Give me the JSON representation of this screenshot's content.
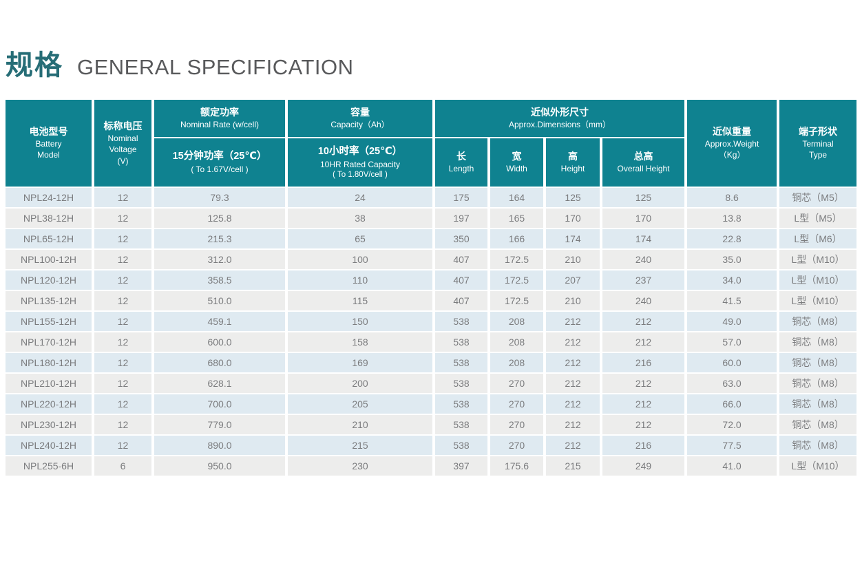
{
  "title": {
    "zh": "规格",
    "en": "GENERAL SPECIFICATION"
  },
  "colors": {
    "header_teal": "#0f8290",
    "title_teal": "#266d76",
    "title_gray": "#58595b",
    "row_stripe_blue": "#dfeaf1",
    "row_stripe_gray": "#ededec",
    "cell_text_gray": "#7b7c7e"
  },
  "table": {
    "header": {
      "battery_model": {
        "zh": "电池型号",
        "en1": "Battery",
        "en2": "Model"
      },
      "nominal_voltage": {
        "zh": "标称电压",
        "en1": "Nominal",
        "en2": "Voltage",
        "en3": "(V)"
      },
      "nominal_rate_top": {
        "zh": "额定功率",
        "en": "Nominal Rate (w/cell)"
      },
      "nominal_rate_sub": {
        "zh": "15分钟功率（25℃）",
        "en": "( To 1.67V/cell )"
      },
      "capacity_top": {
        "zh": "容量",
        "en": "Capacity（Ah）"
      },
      "capacity_sub": {
        "zh": "10小时率（25℃）",
        "en": "10HR Rated Capacity",
        "note": "( To 1.80V/cell )"
      },
      "dimensions_top": {
        "zh": "近似外形尺寸",
        "en": "Approx.Dimensions（mm）"
      },
      "dim_length": {
        "zh": "长",
        "en": "Length"
      },
      "dim_width": {
        "zh": "宽",
        "en": "Width"
      },
      "dim_height": {
        "zh": "高",
        "en": "Height"
      },
      "dim_overall_height": {
        "zh": "总高",
        "en": "Overall Height"
      },
      "approx_weight": {
        "zh": "近似重量",
        "en": "Approx.Weight",
        "unit": "（Kg）"
      },
      "terminal_type": {
        "zh": "端子形状",
        "en1": "Terminal",
        "en2": "Type"
      }
    },
    "rows": [
      [
        "NPL24-12H",
        "12",
        "79.3",
        "24",
        "175",
        "164",
        "125",
        "125",
        "8.6",
        "铜芯（M5）"
      ],
      [
        "NPL38-12H",
        "12",
        "125.8",
        "38",
        "197",
        "165",
        "170",
        "170",
        "13.8",
        "L型（M5）"
      ],
      [
        "NPL65-12H",
        "12",
        "215.3",
        "65",
        "350",
        "166",
        "174",
        "174",
        "22.8",
        "L型（M6）"
      ],
      [
        "NPL100-12H",
        "12",
        "312.0",
        "100",
        "407",
        "172.5",
        "210",
        "240",
        "35.0",
        "L型（M10）"
      ],
      [
        "NPL120-12H",
        "12",
        "358.5",
        "110",
        "407",
        "172.5",
        "207",
        "237",
        "34.0",
        "L型（M10）"
      ],
      [
        "NPL135-12H",
        "12",
        "510.0",
        "115",
        "407",
        "172.5",
        "210",
        "240",
        "41.5",
        "L型（M10）"
      ],
      [
        "NPL155-12H",
        "12",
        "459.1",
        "150",
        "538",
        "208",
        "212",
        "212",
        "49.0",
        "铜芯（M8）"
      ],
      [
        "NPL170-12H",
        "12",
        "600.0",
        "158",
        "538",
        "208",
        "212",
        "212",
        "57.0",
        "铜芯（M8）"
      ],
      [
        "NPL180-12H",
        "12",
        "680.0",
        "169",
        "538",
        "208",
        "212",
        "216",
        "60.0",
        "铜芯（M8）"
      ],
      [
        "NPL210-12H",
        "12",
        "628.1",
        "200",
        "538",
        "270",
        "212",
        "212",
        "63.0",
        "铜芯（M8）"
      ],
      [
        "NPL220-12H",
        "12",
        "700.0",
        "205",
        "538",
        "270",
        "212",
        "212",
        "66.0",
        "铜芯（M8）"
      ],
      [
        "NPL230-12H",
        "12",
        "779.0",
        "210",
        "538",
        "270",
        "212",
        "212",
        "72.0",
        "铜芯（M8）"
      ],
      [
        "NPL240-12H",
        "12",
        "890.0",
        "215",
        "538",
        "270",
        "212",
        "216",
        "77.5",
        "铜芯（M8）"
      ],
      [
        "NPL255-6H",
        "6",
        "950.0",
        "230",
        "397",
        "175.6",
        "215",
        "249",
        "41.0",
        "L型（M10）"
      ]
    ]
  }
}
